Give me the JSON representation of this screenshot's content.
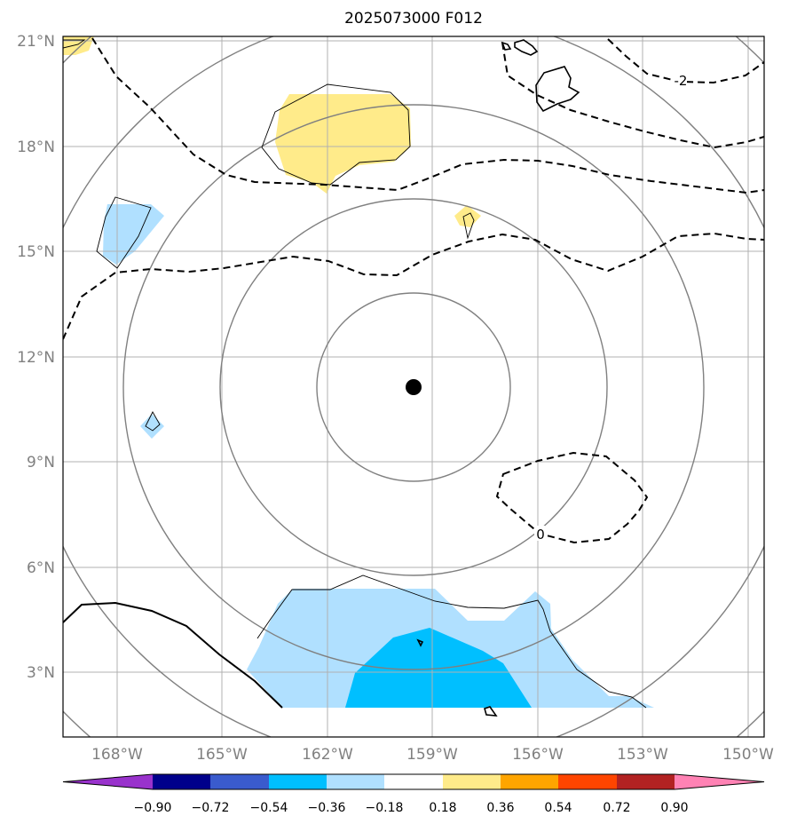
{
  "title": "2025073000 F012",
  "map": {
    "type": "forecast anomaly map",
    "lon_range": [
      -169,
      -149.7
    ],
    "lat_range": [
      1.2,
      21.1
    ],
    "lon_ticks": [
      "168°W",
      "165°W",
      "162°W",
      "159°W",
      "156°W",
      "153°W",
      "150°W"
    ],
    "lat_ticks": [
      "3°N",
      "6°N",
      "9°N",
      "12°N",
      "15°N",
      "18°N",
      "21°N"
    ],
    "center_marker": {
      "lon": -159.5,
      "lat": 11.1
    },
    "range_ring_count": 5,
    "contour_labels": [
      "-2",
      "0"
    ],
    "gridlines": true
  },
  "colorbar": {
    "labels": [
      "−0.90",
      "−0.72",
      "−0.54",
      "−0.36",
      "−0.18",
      "0.18",
      "0.36",
      "0.54",
      "0.72",
      "0.90"
    ],
    "colors": [
      "#9932cc",
      "#00008b",
      "#3a5bcd",
      "#00bfff",
      "#b0e0ff",
      "#ffffff",
      "#ffeb8a",
      "#ffa500",
      "#ff4500",
      "#b22222",
      "#ff82b4"
    ],
    "extend": "both"
  }
}
